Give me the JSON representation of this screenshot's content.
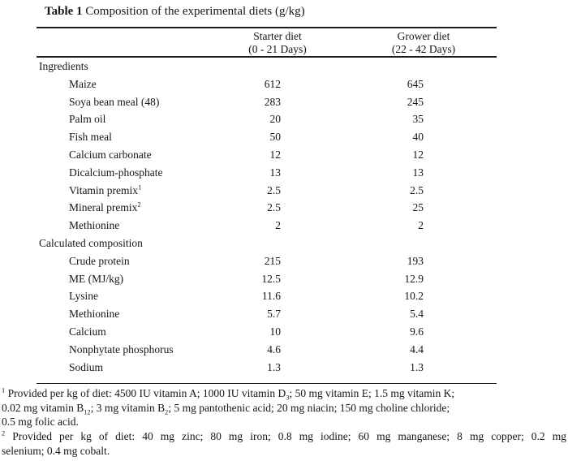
{
  "title": {
    "bold": "Table 1",
    "rest": "Composition of the experimental diets (g/kg)"
  },
  "table": {
    "columns": [
      {
        "name": "Starter diet",
        "sub": "(0 - 21 Days)"
      },
      {
        "name": "Grower diet",
        "sub": "(22 - 42 Days)"
      }
    ],
    "sections": [
      {
        "header": "Ingredients",
        "rows": [
          {
            "label": "Maize",
            "starter": "612",
            "grower": "645"
          },
          {
            "label": "Soya bean meal (48)",
            "starter": "283",
            "grower": "245"
          },
          {
            "label": "Palm oil",
            "starter": "20",
            "grower": "35"
          },
          {
            "label": "Fish meal",
            "starter": "50",
            "grower": "40"
          },
          {
            "label": "Calcium carbonate",
            "starter": "12",
            "grower": "12"
          },
          {
            "label": "Dicalcium-phosphate",
            "starter": "13",
            "grower": "13"
          },
          {
            "label": "Vitamin premix^1^",
            "starter": "2.5",
            "grower": "2.5"
          },
          {
            "label": "Mineral premix^2^",
            "starter": "2.5",
            "grower": "25"
          },
          {
            "label": "Methionine",
            "starter": "2",
            "grower": "2"
          }
        ]
      },
      {
        "header": "Calculated composition",
        "rows": [
          {
            "label": "Crude protein",
            "starter": "215",
            "grower": "193"
          },
          {
            "label": "ME (MJ/kg)",
            "starter": "12.5",
            "grower": "12.9"
          },
          {
            "label": "Lysine",
            "starter": "11.6",
            "grower": "10.2"
          },
          {
            "label": "Methionine",
            "starter": "5.7",
            "grower": "5.4"
          },
          {
            "label": "Calcium",
            "starter": "10",
            "grower": "9.6"
          },
          {
            "label": "Nonphytate phosphorus",
            "starter": "4.6",
            "grower": "4.4"
          },
          {
            "label": "Sodium",
            "starter": "1.3",
            "grower": "1.3"
          }
        ]
      }
    ]
  },
  "footnotes": [
    {
      "justify_first": false,
      "lines": [
        "^1^ Provided per kg of diet: 4500 IU vitamin A; 1000 IU vitamin D~3~; 50 mg vitamin E; 1.5 mg vitamin K;",
        "0.02 mg vitamin B~12~; 3 mg vitamin B~2~; 5 mg pantothenic acid; 20 mg niacin; 150 mg choline chloride;",
        "0.5 mg folic acid."
      ]
    },
    {
      "justify_first": true,
      "lines": [
        "^2^ Provided per kg of diet: 40 mg zinc; 80 mg iron; 0.8 mg iodine; 60 mg manganese; 8 mg copper; 0.2 mg",
        "selenium; 0.4 mg cobalt."
      ]
    }
  ]
}
